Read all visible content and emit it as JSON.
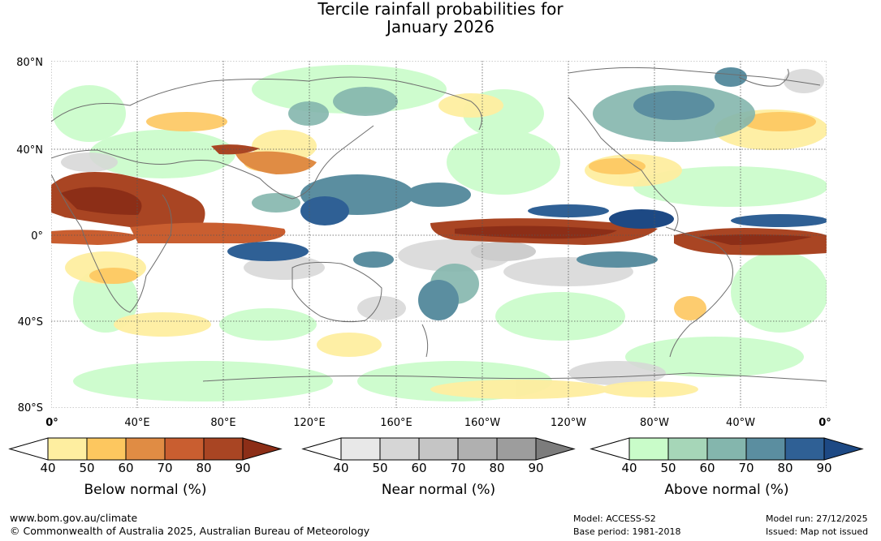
{
  "title": {
    "line1": "Tercile rainfall probabilities for",
    "line2": "January 2026"
  },
  "map": {
    "lat_labels": [
      "80°N",
      "40°N",
      "0°",
      "40°S",
      "80°S"
    ],
    "lon_labels": [
      "0°",
      "40°E",
      "80°E",
      "120°E",
      "160°E",
      "160°W",
      "120°W",
      "80°W",
      "40°W",
      "0°"
    ]
  },
  "legends": [
    {
      "title": "Below normal (%)",
      "ticks": [
        "40",
        "50",
        "60",
        "70",
        "80",
        "90"
      ],
      "colors": [
        "#ffffff",
        "#feeea0",
        "#fdc75f",
        "#e08c44",
        "#c95e30",
        "#a94523",
        "#8c2e17"
      ]
    },
    {
      "title": "Near normal (%)",
      "ticks": [
        "40",
        "50",
        "60",
        "70",
        "80",
        "90"
      ],
      "colors": [
        "#ffffff",
        "#e8e8e8",
        "#d6d6d6",
        "#c5c5c5",
        "#b0b0b0",
        "#9d9d9d",
        "#7c7c7c"
      ]
    },
    {
      "title": "Above normal (%)",
      "ticks": [
        "40",
        "50",
        "60",
        "70",
        "80",
        "90"
      ],
      "colors": [
        "#ffffff",
        "#c9fcc9",
        "#a6d6b8",
        "#84b6ad",
        "#5b8ea0",
        "#2f6095",
        "#1d4984"
      ]
    }
  ],
  "footer": {
    "url": "www.bom.gov.au/climate",
    "copyright": "© Commonwealth of Australia 2025, Australian Bureau of Meteorology",
    "model": "Model: ACCESS-S2",
    "base_period": "Base period: 1981-2018",
    "model_run": "Model run: 27/12/2025",
    "issued": "Issued: Map not issued"
  }
}
